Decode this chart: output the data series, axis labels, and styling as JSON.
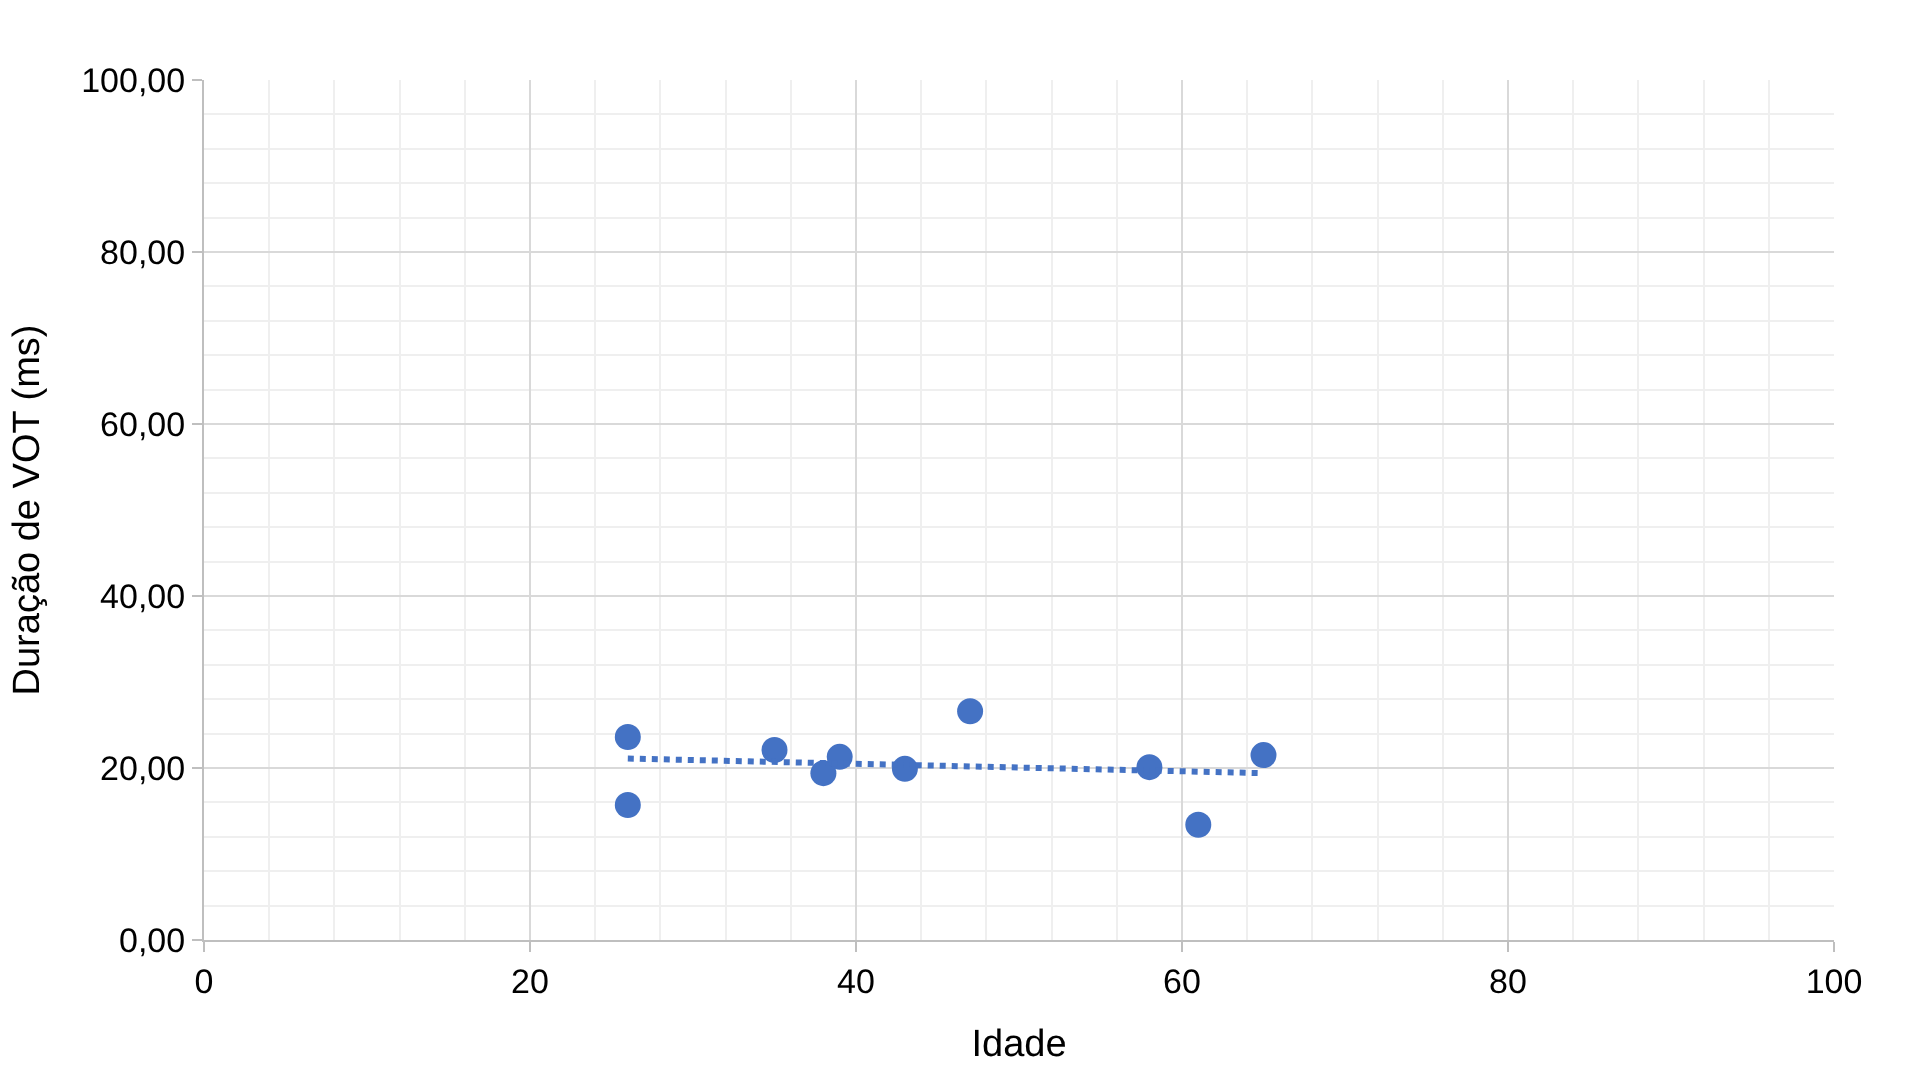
{
  "chart_data": {
    "type": "scatter",
    "xlabel": "Idade",
    "ylabel": "Duração de VOT (ms)",
    "x": [
      26,
      26,
      35,
      38,
      39,
      43,
      47,
      58,
      61,
      65
    ],
    "series": [
      {
        "color": "#4472c4",
        "marker": "circle",
        "values": [
          23.6,
          15.7,
          22.1,
          19.4,
          21.3,
          19.9,
          26.6,
          20.1,
          13.4,
          21.5
        ]
      },
      {
        "type": "line",
        "color": "#4472c4",
        "line_style": "dotted",
        "marker": "none",
        "x": [
          26,
          65
        ],
        "values": [
          21.1,
          19.4
        ]
      }
    ],
    "xlim": [
      0,
      100
    ],
    "xticks": [
      0,
      20,
      40,
      60,
      80,
      100
    ],
    "ylim": [
      0,
      100
    ],
    "yticks": [
      {
        "value": 0,
        "label": "0,00"
      },
      {
        "value": 20,
        "label": "20,00"
      },
      {
        "value": 40,
        "label": "40,00"
      },
      {
        "value": 60,
        "label": "60,00"
      },
      {
        "value": 80,
        "label": "80,00"
      },
      {
        "value": 100,
        "label": "100,00"
      }
    ],
    "grid": true,
    "legend": false
  }
}
